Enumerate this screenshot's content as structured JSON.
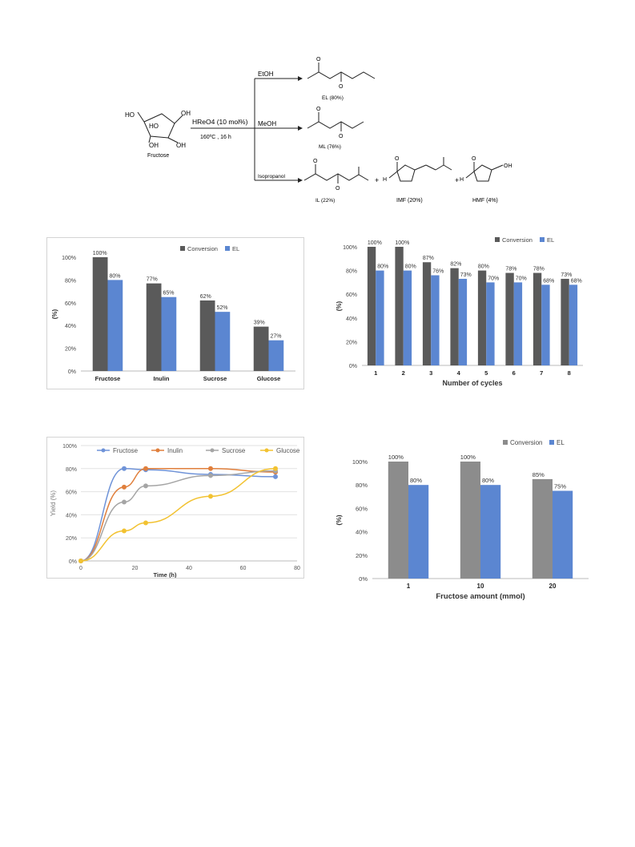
{
  "scheme": {
    "reagent": "HReO4 (10 mol%)",
    "conditions": "160ºC , 16 h",
    "substrate": "Fructose",
    "fructose_labels": [
      "HO",
      "HO",
      "OH",
      "OH",
      "OH"
    ],
    "branches": [
      {
        "solvent": "EtOH",
        "products": [
          "EL (80%)"
        ]
      },
      {
        "solvent": "MeOH",
        "products": [
          "ML (76%)"
        ]
      },
      {
        "solvent": "Isopropanol",
        "products": [
          "IL (22%)",
          "IMF (20%)",
          "HMF (4%)"
        ]
      }
    ],
    "atom_labels": {
      "o": "O",
      "h": "H",
      "oh": "OH",
      "plus": "+"
    }
  },
  "colors": {
    "conversion": "#5a5a5a",
    "el": "#5b86d1",
    "conversion_d": "#8c8c8c",
    "fructose": "#6f93d8",
    "inulin": "#e07f3c",
    "sucrose": "#a5a5a5",
    "glucose": "#f2c231"
  },
  "chart_data": [
    {
      "type": "bar",
      "categories": [
        "Fructose",
        "Inulin",
        "Sucrose",
        "Glucose"
      ],
      "series": [
        {
          "name": "Conversion",
          "values": [
            100,
            77,
            62,
            39
          ],
          "labels": [
            "100%",
            "77%",
            "62%",
            "39%"
          ]
        },
        {
          "name": "EL",
          "values": [
            80,
            65,
            52,
            27
          ],
          "labels": [
            "80%",
            "65%",
            "52%",
            "27%"
          ]
        }
      ],
      "ylabel": "(%)",
      "xlabel": "",
      "ylim": [
        0,
        100
      ],
      "yticks": [
        "0%",
        "20%",
        "40%",
        "60%",
        "80%",
        "100%"
      ],
      "legend": "top-right",
      "grid": false
    },
    {
      "type": "bar",
      "categories": [
        "1",
        "2",
        "3",
        "4",
        "5",
        "6",
        "7",
        "8"
      ],
      "series": [
        {
          "name": "Conversion",
          "values": [
            100,
            100,
            87,
            82,
            80,
            78,
            78,
            73
          ],
          "labels": [
            "100%",
            "100%",
            "87%",
            "82%",
            "80%",
            "78%",
            "78%",
            "73%"
          ]
        },
        {
          "name": "EL",
          "values": [
            80,
            80,
            76,
            73,
            70,
            70,
            68,
            68
          ],
          "labels": [
            "80%",
            "80%",
            "76%",
            "73%",
            "70%",
            "70%",
            "68%",
            "68%"
          ]
        }
      ],
      "ylabel": "(%)",
      "xlabel": "Number of cycles",
      "ylim": [
        0,
        100
      ],
      "yticks": [
        "0%",
        "20%",
        "40%",
        "60%",
        "80%",
        "100%"
      ],
      "legend": "top-right",
      "grid": false
    },
    {
      "type": "line",
      "x": [
        0,
        16,
        24,
        48,
        72
      ],
      "series": [
        {
          "name": "Fructose",
          "values": [
            0,
            80,
            79,
            75,
            73
          ]
        },
        {
          "name": "Inulin",
          "values": [
            0,
            64,
            80,
            80,
            77
          ]
        },
        {
          "name": "Sucrose",
          "values": [
            0,
            51,
            65,
            74,
            78
          ]
        },
        {
          "name": "Glucose",
          "values": [
            0,
            26,
            33,
            56,
            80
          ]
        }
      ],
      "ylabel": "Yield (%)",
      "xlabel": "Time (h)",
      "xlim": [
        0,
        80
      ],
      "ylim": [
        0,
        100
      ],
      "xticks": [
        "0",
        "20",
        "40",
        "60",
        "80"
      ],
      "yticks": [
        "0%",
        "20%",
        "40%",
        "60%",
        "80%",
        "100%"
      ],
      "legend": "top",
      "grid": true
    },
    {
      "type": "bar",
      "categories": [
        "1",
        "10",
        "20"
      ],
      "series": [
        {
          "name": "Conversion",
          "values": [
            100,
            100,
            85
          ],
          "labels": [
            "100%",
            "100%",
            "85%"
          ]
        },
        {
          "name": "EL",
          "values": [
            80,
            80,
            75
          ],
          "labels": [
            "80%",
            "80%",
            "75%"
          ]
        }
      ],
      "ylabel": "(%)",
      "xlabel": "Fructose amount (mmol)",
      "ylim": [
        0,
        100
      ],
      "yticks": [
        "0%",
        "20%",
        "40%",
        "60%",
        "80%",
        "100%"
      ],
      "legend": "top-right",
      "grid": false
    }
  ]
}
